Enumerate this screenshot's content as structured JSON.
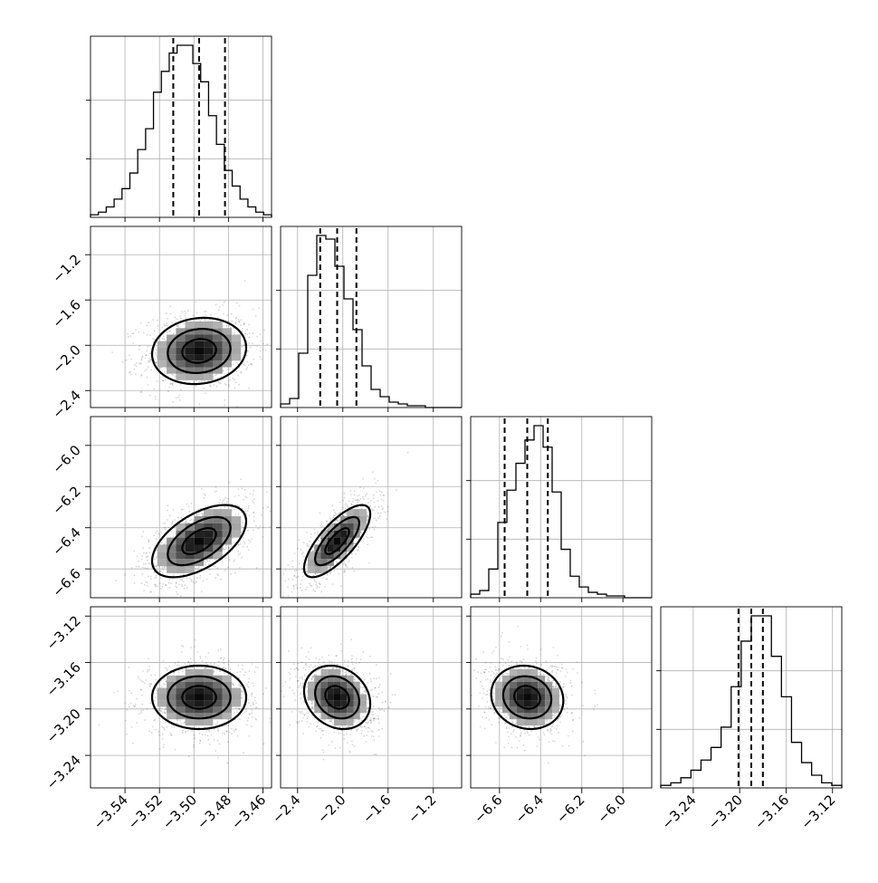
{
  "chart_data": {
    "type": "corner",
    "grid": true,
    "parameters": [
      {
        "index": 0,
        "range": [
          -3.56,
          -3.455
        ],
        "ticks": [
          -3.54,
          -3.52,
          -3.5,
          -3.48,
          -3.46
        ],
        "tick_labels": [
          "−3.54",
          "−3.52",
          "−3.50",
          "−3.48",
          "−3.46"
        ],
        "mean": -3.497,
        "std": 0.014,
        "quantiles": [
          -3.512,
          -3.497,
          -3.482
        ]
      },
      {
        "index": 1,
        "range": [
          -2.55,
          -0.95
        ],
        "ticks": [
          -2.4,
          -2.0,
          -1.6,
          -1.2
        ],
        "tick_labels": [
          "−2.4",
          "−2.0",
          "−1.6",
          "−1.2"
        ],
        "mean": -2.05,
        "std": 0.15,
        "quantiles": [
          -2.2,
          -2.05,
          -1.88
        ]
      },
      {
        "index": 2,
        "range": [
          -6.74,
          -5.86
        ],
        "ticks": [
          -6.6,
          -6.4,
          -6.2,
          -6.0
        ],
        "tick_labels": [
          "−6.6",
          "−6.4",
          "−6.2",
          "−6.0"
        ],
        "mean": -6.465,
        "std": 0.09,
        "quantiles": [
          -6.575,
          -6.465,
          -6.365
        ]
      },
      {
        "index": 3,
        "range": [
          -3.268,
          -3.112
        ],
        "ticks": [
          -3.24,
          -3.2,
          -3.16,
          -3.12
        ],
        "tick_labels": [
          "−3.24",
          "−3.20",
          "−3.16",
          "−3.12"
        ],
        "mean": -3.19,
        "std": 0.014,
        "quantiles": [
          -3.201,
          -3.19,
          -3.18
        ]
      }
    ],
    "histograms": [
      {
        "param": 0,
        "counts": [
          1,
          2,
          4,
          7,
          11,
          17,
          26,
          34,
          48,
          56,
          63,
          66,
          66,
          59,
          52,
          39,
          28,
          18,
          12,
          7,
          4,
          2,
          1
        ]
      },
      {
        "param": 1,
        "counts": [
          2,
          5,
          30,
          73,
          95,
          93,
          78,
          60,
          43,
          23,
          10,
          6,
          3,
          2,
          1,
          1,
          0,
          0,
          0,
          0
        ]
      },
      {
        "param": 2,
        "counts": [
          2,
          4,
          16,
          42,
          60,
          75,
          88,
          96,
          84,
          59,
          27,
          12,
          6,
          3,
          2,
          1,
          1,
          0,
          0,
          0
        ]
      },
      {
        "param": 3,
        "counts": [
          1,
          2,
          4,
          7,
          11,
          16,
          24,
          40,
          58,
          68,
          68,
          52,
          36,
          18,
          10,
          5,
          2,
          1
        ]
      }
    ],
    "pairs": [
      {
        "x": 0,
        "y": 1,
        "rho": 0.1
      },
      {
        "x": 0,
        "y": 2,
        "rho": 0.55
      },
      {
        "x": 1,
        "y": 2,
        "rho": 0.75
      },
      {
        "x": 0,
        "y": 3,
        "rho": 0.0
      },
      {
        "x": 1,
        "y": 3,
        "rho": -0.2
      },
      {
        "x": 2,
        "y": 3,
        "rho": -0.1
      }
    ]
  }
}
